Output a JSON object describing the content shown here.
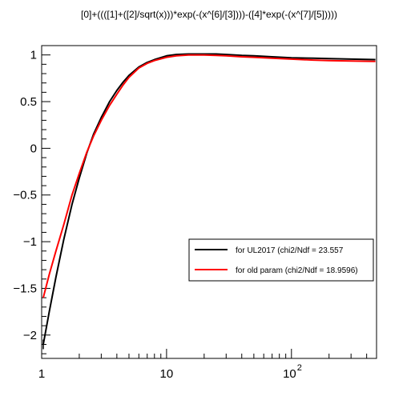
{
  "chart_data": {
    "type": "line",
    "title": "[0]+((([1]+([2]/sqrt(x)))*exp(-(x^[6]/[3])))-([4]*exp(-(x^[7]/[5]))))",
    "xlabel": "",
    "ylabel": "",
    "x_scale": "log",
    "xlim": [
      1,
      480
    ],
    "ylim": [
      -2.25,
      1.1
    ],
    "grid": false,
    "legend_position": "lower-right",
    "x_ticks": [
      {
        "value": 1,
        "label": "1",
        "exp": ""
      },
      {
        "value": 10,
        "label": "10",
        "exp": ""
      },
      {
        "value": 100,
        "label": "10",
        "exp": "2"
      }
    ],
    "y_ticks": [
      {
        "value": 1,
        "label": "1"
      },
      {
        "value": 0.5,
        "label": "0.5"
      },
      {
        "value": 0,
        "label": "0"
      },
      {
        "value": -0.5,
        "label": "−0.5"
      },
      {
        "value": -1,
        "label": "−1"
      },
      {
        "value": -1.5,
        "label": "−1.5"
      },
      {
        "value": -2,
        "label": "−2"
      }
    ],
    "series": [
      {
        "name": "for UL2017 (chi2/Ndf = 23.557",
        "color": "#000000",
        "x": [
          1.03,
          1.15,
          1.3,
          1.5,
          1.75,
          2.0,
          2.3,
          2.6,
          3.0,
          3.5,
          4.0,
          4.5,
          5.0,
          6.0,
          7.0,
          8.0,
          10,
          12,
          15,
          20,
          25,
          30,
          40,
          50,
          70,
          100,
          150,
          200,
          300,
          470
        ],
        "y": [
          -2.1,
          -1.75,
          -1.38,
          -0.98,
          -0.6,
          -0.32,
          -0.05,
          0.15,
          0.33,
          0.5,
          0.62,
          0.71,
          0.78,
          0.87,
          0.92,
          0.95,
          0.99,
          1.005,
          1.01,
          1.01,
          1.01,
          1.005,
          0.995,
          0.99,
          0.98,
          0.97,
          0.965,
          0.96,
          0.955,
          0.95
        ]
      },
      {
        "name": "for old param (chi2/Ndf = 18.9596)",
        "color": "#ff0000",
        "x": [
          1.03,
          1.15,
          1.3,
          1.5,
          1.75,
          2.0,
          2.3,
          2.6,
          3.0,
          3.5,
          4.0,
          4.5,
          5.0,
          6.0,
          7.0,
          8.0,
          10,
          12,
          15,
          20,
          25,
          30,
          40,
          50,
          70,
          100,
          150,
          200,
          300,
          470
        ],
        "y": [
          -1.6,
          -1.35,
          -1.1,
          -0.82,
          -0.5,
          -0.27,
          -0.04,
          0.13,
          0.3,
          0.46,
          0.58,
          0.68,
          0.76,
          0.86,
          0.91,
          0.94,
          0.975,
          0.99,
          1.0,
          1.0,
          0.995,
          0.99,
          0.98,
          0.975,
          0.965,
          0.955,
          0.945,
          0.94,
          0.935,
          0.93
        ]
      }
    ]
  }
}
